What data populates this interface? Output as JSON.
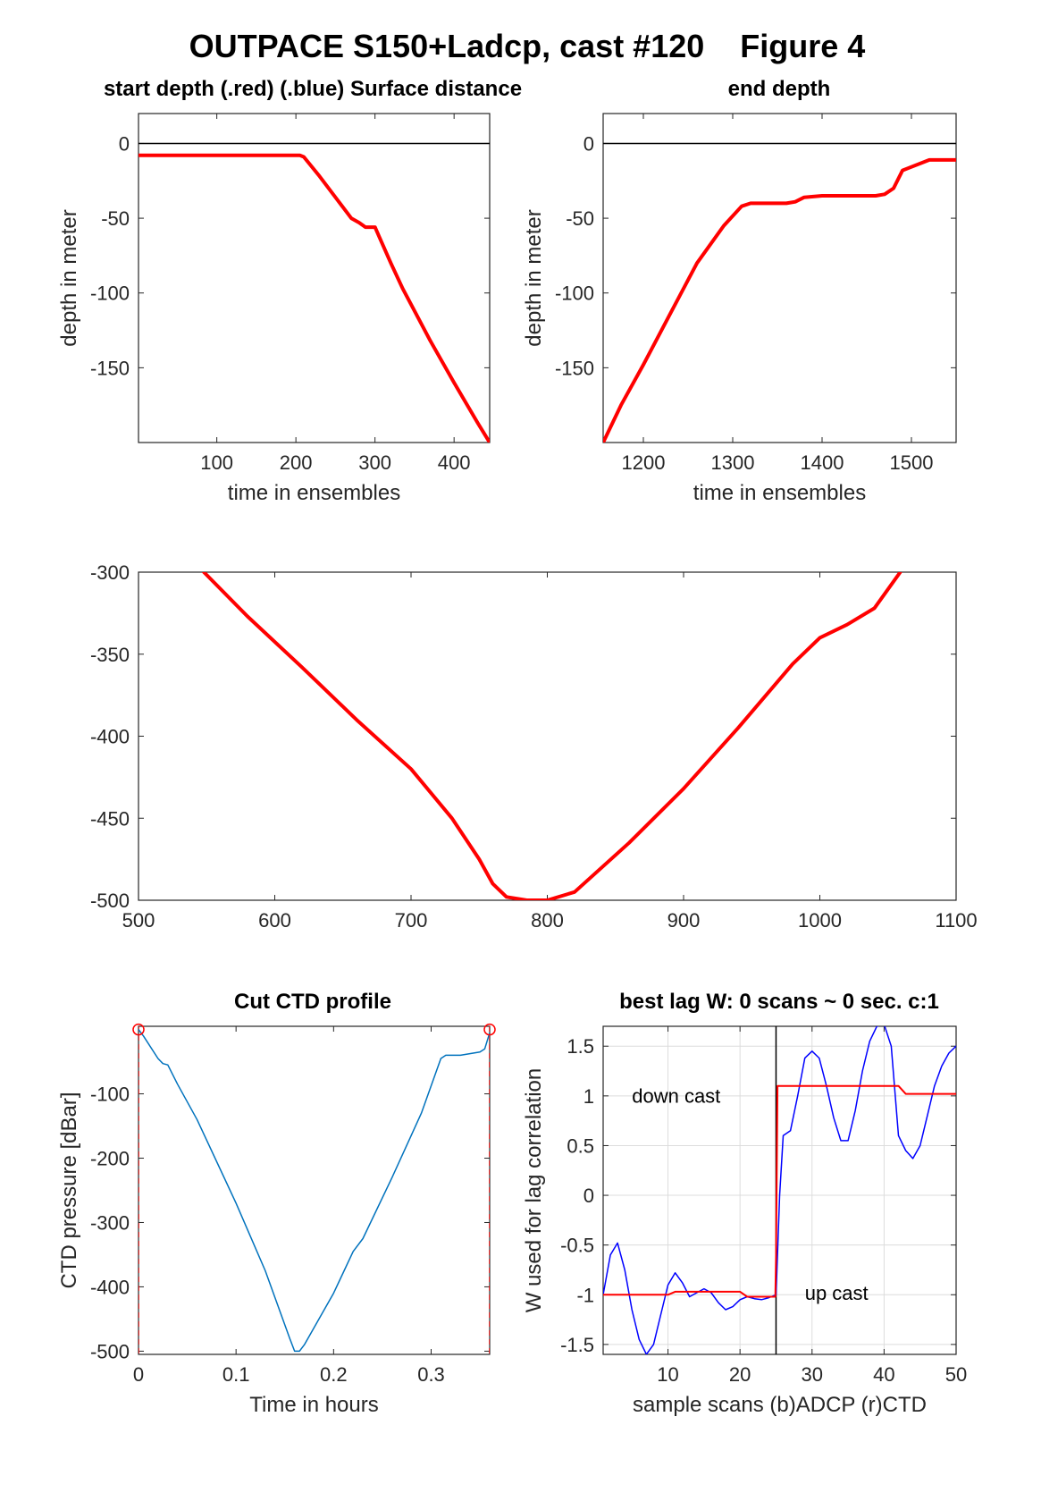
{
  "figure_title": "OUTPACE S150+Ladcp, cast #120    Figure 4",
  "chart_data": [
    {
      "id": "start",
      "type": "line",
      "title": "start depth (.red) (.blue) Surface distance",
      "xlabel": "time in ensembles",
      "ylabel": "depth in meter",
      "xlim": [
        1,
        445
      ],
      "ylim": [
        -200,
        20
      ],
      "xticks": [
        100,
        200,
        300,
        400
      ],
      "yticks": [
        0,
        -50,
        -100,
        -150
      ],
      "grid": false,
      "hlines": [
        {
          "y": 0,
          "color": "#000000"
        }
      ],
      "series": [
        {
          "color": "#ff0000",
          "width": 4,
          "x": [
            1,
            205,
            210,
            230,
            250,
            270,
            280,
            288,
            300,
            305,
            320,
            335,
            350,
            370,
            400,
            430,
            445
          ],
          "y": [
            -8,
            -8,
            -9,
            -22,
            -36,
            -50,
            -53,
            -56,
            -56,
            -62,
            -80,
            -97,
            -112,
            -132,
            -160,
            -187,
            -200
          ]
        }
      ]
    },
    {
      "id": "end",
      "type": "line",
      "title": "end depth",
      "xlabel": "time in ensembles",
      "ylabel": "depth in meter",
      "xlim": [
        1155,
        1550
      ],
      "ylim": [
        -200,
        20
      ],
      "xticks": [
        1200,
        1300,
        1400,
        1500
      ],
      "yticks": [
        0,
        -50,
        -100,
        -150
      ],
      "grid": false,
      "hlines": [
        {
          "y": 0,
          "color": "#000000"
        }
      ],
      "series": [
        {
          "color": "#ff0000",
          "width": 4,
          "x": [
            1155,
            1175,
            1200,
            1230,
            1260,
            1290,
            1310,
            1320,
            1340,
            1360,
            1370,
            1380,
            1400,
            1420,
            1440,
            1460,
            1470,
            1480,
            1490,
            1520,
            1550
          ],
          "y": [
            -200,
            -175,
            -148,
            -114,
            -80,
            -55,
            -42,
            -40,
            -40,
            -40,
            -39,
            -36,
            -35,
            -35,
            -35,
            -35,
            -34,
            -30,
            -18,
            -11,
            -11
          ]
        }
      ]
    },
    {
      "id": "middle",
      "type": "line",
      "title": "",
      "xlabel": "",
      "ylabel": "",
      "xlim": [
        500,
        1100
      ],
      "ylim": [
        -500,
        -300
      ],
      "xticks": [
        500,
        600,
        700,
        800,
        900,
        1000,
        1100
      ],
      "yticks": [
        -300,
        -350,
        -400,
        -450,
        -500
      ],
      "grid": false,
      "hlines": [],
      "series": [
        {
          "color": "#ff0000",
          "width": 4,
          "x": [
            548,
            580,
            620,
            660,
            700,
            730,
            750,
            760,
            770,
            785,
            800,
            820,
            860,
            900,
            940,
            980,
            1000,
            1020,
            1040,
            1059
          ],
          "y": [
            -300,
            -327,
            -358,
            -390,
            -420,
            -450,
            -475,
            -490,
            -498,
            -500,
            -500,
            -495,
            -465,
            -432,
            -395,
            -356,
            -340,
            -332,
            -322,
            -300
          ]
        }
      ]
    },
    {
      "id": "ctd",
      "type": "line",
      "title": "Cut CTD profile",
      "xlabel": "Time in hours",
      "ylabel": "CTD pressure [dBar]",
      "xlim": [
        0,
        0.36
      ],
      "ylim": [
        -505,
        5
      ],
      "xticks": [
        0,
        0.1,
        0.2,
        0.3
      ],
      "yticks": [
        -100,
        -200,
        -300,
        -400,
        -500
      ],
      "grid": false,
      "hlines": [],
      "vlines_dashed": [
        {
          "x": 0,
          "color": "#ff0000"
        },
        {
          "x": 0.36,
          "color": "#ff0000"
        }
      ],
      "markers": [
        {
          "x": 0,
          "y": 0,
          "color": "#ff0000"
        },
        {
          "x": 0.36,
          "y": 0,
          "color": "#ff0000"
        }
      ],
      "series": [
        {
          "color": "#0072bd",
          "width": 1.5,
          "x": [
            0,
            0.005,
            0.02,
            0.025,
            0.03,
            0.04,
            0.06,
            0.1,
            0.13,
            0.155,
            0.16,
            0.165,
            0.17,
            0.2,
            0.22,
            0.23,
            0.26,
            0.29,
            0.31,
            0.315,
            0.33,
            0.35,
            0.355,
            0.36
          ],
          "y": [
            0,
            -10,
            -45,
            -53,
            -55,
            -85,
            -140,
            -270,
            -375,
            -480,
            -500,
            -500,
            -490,
            -410,
            -345,
            -325,
            -230,
            -130,
            -45,
            -40,
            -40,
            -35,
            -30,
            -5
          ]
        }
      ]
    },
    {
      "id": "lag",
      "type": "line",
      "title": "best lag W: 0 scans ~ 0 sec.  c:1",
      "xlabel": "sample scans (b)ADCP (r)CTD",
      "ylabel": "W used for lag correlation",
      "xlim": [
        1,
        50
      ],
      "ylim": [
        -1.6,
        1.7
      ],
      "xticks": [
        10,
        20,
        30,
        40,
        50
      ],
      "yticks": [
        1.5,
        1,
        0.5,
        0,
        -0.5,
        -1,
        -1.5
      ],
      "grid": true,
      "vlines": [
        {
          "x": 25,
          "color": "#000000"
        }
      ],
      "annotations": [
        {
          "text": "down cast",
          "x": 5,
          "y": 0.93
        },
        {
          "text": "up cast",
          "x": 29,
          "y": -1.05
        }
      ],
      "series": [
        {
          "name": "",
          "color": "#0000ff",
          "width": 1.5,
          "x": [
            1,
            2,
            3,
            4,
            5,
            6,
            7,
            8,
            9,
            10,
            11,
            12,
            13,
            14,
            15,
            16,
            17,
            18,
            19,
            20,
            21,
            22,
            23,
            24,
            25,
            25.5,
            26,
            27,
            28,
            29,
            30,
            31,
            32,
            33,
            34,
            35,
            36,
            37,
            38,
            39,
            40,
            41,
            42,
            43,
            44,
            45,
            46,
            47,
            48,
            49,
            50
          ],
          "y": [
            -1.0,
            -0.6,
            -0.48,
            -0.75,
            -1.15,
            -1.45,
            -1.6,
            -1.5,
            -1.2,
            -0.9,
            -0.78,
            -0.88,
            -1.02,
            -0.98,
            -0.94,
            -0.98,
            -1.08,
            -1.15,
            -1.12,
            -1.05,
            -1.02,
            -1.04,
            -1.05,
            -1.03,
            -1.0,
            0.0,
            0.6,
            0.65,
            1.0,
            1.38,
            1.45,
            1.38,
            1.1,
            0.78,
            0.55,
            0.55,
            0.85,
            1.25,
            1.55,
            1.7,
            1.72,
            1.5,
            0.6,
            0.45,
            0.37,
            0.5,
            0.8,
            1.1,
            1.3,
            1.43,
            1.5
          ]
        },
        {
          "name": "",
          "color": "#ff0000",
          "width": 2,
          "x": [
            1,
            10,
            11,
            20,
            21,
            24.9,
            25,
            25.2,
            42,
            43,
            50
          ],
          "y": [
            -1.0,
            -1.0,
            -0.97,
            -0.97,
            -1.02,
            -1.02,
            -0.6,
            1.1,
            1.1,
            1.02,
            1.02
          ]
        }
      ]
    }
  ]
}
